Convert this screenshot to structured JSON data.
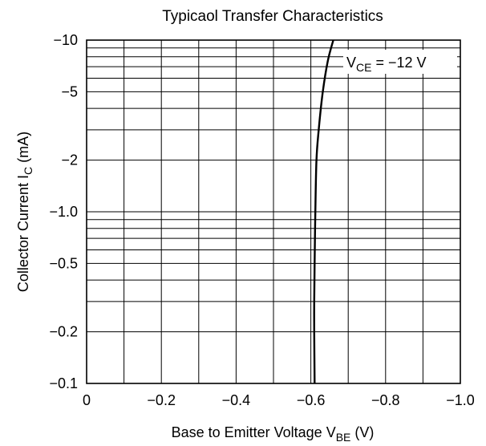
{
  "chart_data": {
    "type": "line",
    "title": "Typicaol Transfer Characteristics",
    "xlabel": {
      "main": "Base to Emitter Voltage  V",
      "sub": "BE",
      "unit": "  (V)"
    },
    "ylabel": {
      "main": "Collector Current  I",
      "sub": "C",
      "unit": "  (mA)"
    },
    "x_ticks": [
      {
        "value": 0,
        "label": "0"
      },
      {
        "value": -0.2,
        "label": "−0.2"
      },
      {
        "value": -0.4,
        "label": "−0.4"
      },
      {
        "value": -0.6,
        "label": "−0.6"
      },
      {
        "value": -0.8,
        "label": "−0.8"
      },
      {
        "value": -1.0,
        "label": "−1.0"
      }
    ],
    "y_ticks": [
      {
        "value": -10,
        "label": "−10"
      },
      {
        "value": -5,
        "label": "−5"
      },
      {
        "value": -2,
        "label": "−2"
      },
      {
        "value": -1.0,
        "label": "−1.0"
      },
      {
        "value": -0.5,
        "label": "−0.5"
      },
      {
        "value": -0.2,
        "label": "−0.2"
      },
      {
        "value": -0.1,
        "label": "−0.1"
      }
    ],
    "x_range": [
      0,
      -1.0
    ],
    "y_range": [
      -0.1,
      -10
    ],
    "y_scale": "log",
    "grid": true,
    "series": [
      {
        "annotation": {
          "main": "V",
          "sub": "CE",
          "rest": " = −12 V"
        },
        "x": [
          -0.61,
          -0.609,
          -0.609,
          -0.61,
          -0.612,
          -0.615,
          -0.621,
          -0.632,
          -0.645,
          -0.66
        ],
        "y": [
          -0.1,
          -0.2,
          -0.3,
          -0.5,
          -1.0,
          -2,
          -3,
          -5,
          -7.5,
          -10
        ]
      }
    ]
  }
}
